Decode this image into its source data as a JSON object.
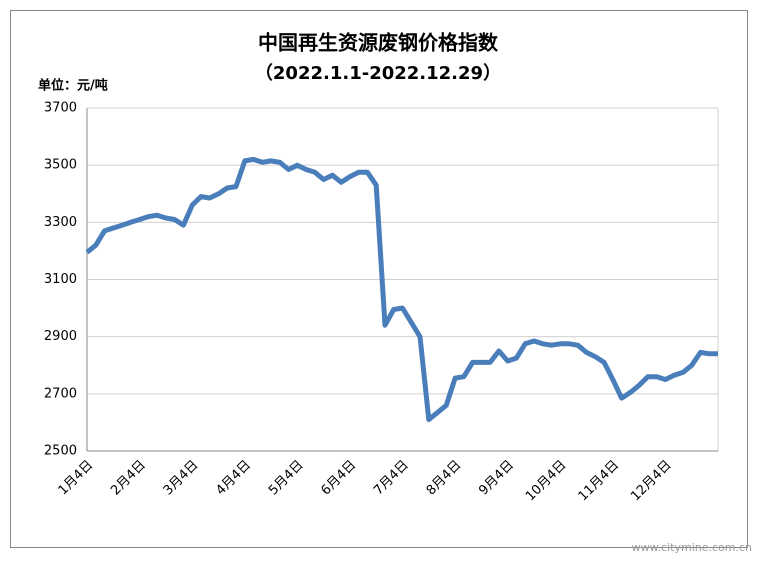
{
  "chart_data": {
    "type": "line",
    "title": "中国再生资源废钢价格指数",
    "subtitle": "（2022.1.1-2022.12.29）",
    "y_label": "单位：元/吨",
    "watermark": "www.citymine.com.cn",
    "categories": [
      "1月4日",
      null,
      null,
      null,
      null,
      null,
      "2月4日",
      null,
      null,
      null,
      null,
      null,
      "3月4日",
      null,
      null,
      null,
      null,
      null,
      "4月4日",
      null,
      null,
      null,
      null,
      null,
      "5月4日",
      null,
      null,
      null,
      null,
      null,
      "6月4日",
      null,
      null,
      null,
      null,
      null,
      "7月4日",
      null,
      null,
      null,
      null,
      null,
      "8月4日",
      null,
      null,
      null,
      null,
      null,
      "9月4日",
      null,
      null,
      null,
      null,
      null,
      "10月4日",
      null,
      null,
      null,
      null,
      null,
      "11月4日",
      null,
      null,
      null,
      null,
      null,
      "12月4日",
      null,
      null,
      null,
      null,
      null,
      null
    ],
    "series": [
      {
        "name": "废钢价格指数",
        "color": "#4a7ebb",
        "values": [
          3195,
          3220,
          3270,
          3280,
          3290,
          3300,
          3310,
          3320,
          3325,
          3315,
          3310,
          3290,
          3360,
          3390,
          3385,
          3400,
          3420,
          3425,
          3515,
          3520,
          3510,
          3515,
          3510,
          3485,
          3500,
          3485,
          3475,
          3450,
          3465,
          3440,
          3460,
          3475,
          3475,
          3430,
          2940,
          2995,
          3000,
          2950,
          2900,
          2610,
          2635,
          2660,
          2755,
          2760,
          2810,
          2810,
          2810,
          2850,
          2815,
          2825,
          2875,
          2885,
          2875,
          2870,
          2875,
          2875,
          2870,
          2845,
          2830,
          2810,
          2750,
          2685,
          2705,
          2730,
          2760,
          2760,
          2750,
          2765,
          2775,
          2800,
          2845,
          2840,
          2840
        ]
      }
    ],
    "ylim": [
      2500,
      3700
    ],
    "yticks": [
      2500,
      2700,
      2900,
      3100,
      3300,
      3500,
      3700
    ],
    "grid": true,
    "legend": false
  }
}
